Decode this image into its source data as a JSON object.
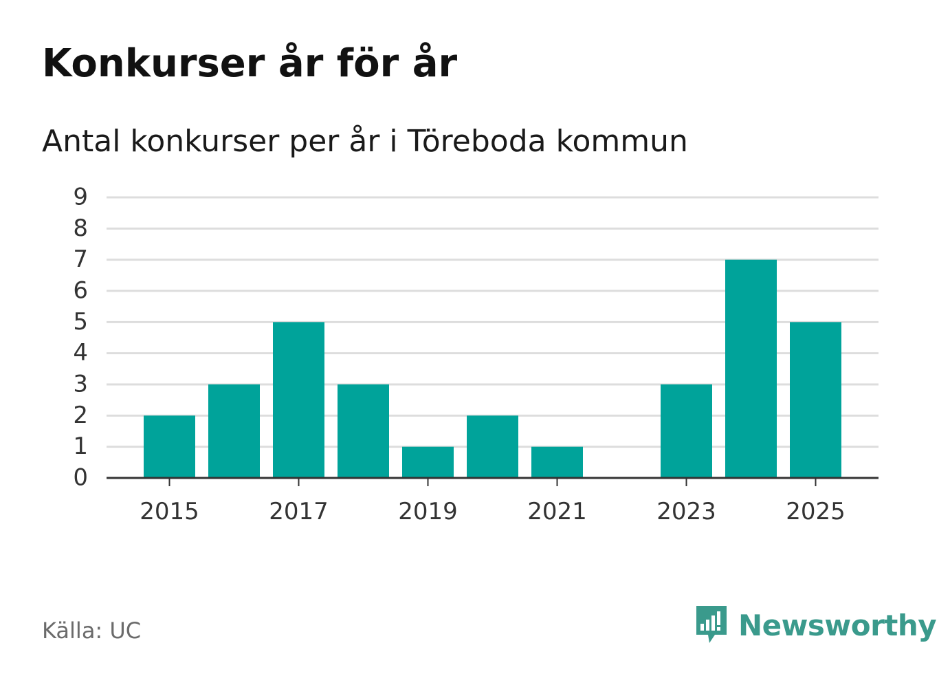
{
  "header": {
    "title": "Konkurser år för år",
    "subtitle": "Antal konkurser per år i Töreboda kommun"
  },
  "footer": {
    "source": "Källa: UC",
    "brand": "Newsworthy",
    "brand_icon": "newsworthy-logo-icon"
  },
  "colors": {
    "bar": "#00a39a",
    "grid": "#dddddd",
    "axis": "#333333",
    "brand": "#3a9a8c"
  },
  "chart_data": {
    "type": "bar",
    "categories": [
      "2015",
      "2016",
      "2017",
      "2018",
      "2019",
      "2020",
      "2021",
      "2022",
      "2023",
      "2024",
      "2025"
    ],
    "values": [
      2,
      3,
      5,
      3,
      1,
      2,
      1,
      0,
      3,
      7,
      5
    ],
    "x_tick_labels": [
      "2015",
      "2017",
      "2019",
      "2021",
      "2023",
      "2025"
    ],
    "y_ticks": [
      0,
      1,
      2,
      3,
      4,
      5,
      6,
      7,
      8,
      9
    ],
    "ylim": [
      0,
      9
    ],
    "xlabel": "",
    "ylabel": "",
    "grid": true,
    "legend": "none"
  }
}
